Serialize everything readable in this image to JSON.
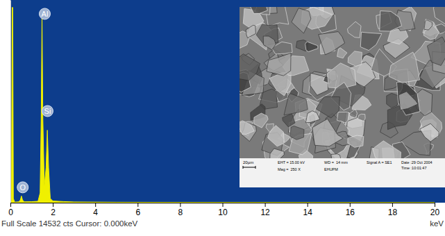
{
  "chart_data": {
    "type": "area",
    "xlabel": "keV",
    "footer": "Full Scale 14532 cts Cursor: 0.000keV",
    "color": "#f0f000",
    "x": [
      0,
      0.05,
      0.08,
      0.11,
      0.14,
      0.2,
      0.4,
      0.47,
      0.52,
      0.57,
      0.65,
      1.0,
      1.3,
      1.4,
      1.45,
      1.49,
      1.53,
      1.6,
      1.68,
      1.74,
      1.8,
      1.88,
      2.0,
      2.5,
      3.0,
      5,
      10,
      20
    ],
    "values": [
      0,
      200,
      14000,
      14000,
      300,
      40,
      60,
      200,
      480,
      200,
      60,
      70,
      100,
      700,
      6000,
      13500,
      6000,
      1200,
      2500,
      5200,
      2500,
      300,
      120,
      80,
      50,
      30,
      15,
      5
    ],
    "xlim": [
      0,
      20
    ],
    "xticks": [
      0,
      2,
      4,
      6,
      8,
      10,
      12,
      14,
      16,
      18,
      20
    ],
    "ylim": [
      0,
      14532
    ],
    "tick_labels": "x",
    "annotations": [
      {
        "text": "Al",
        "x": 1.62,
        "y": 13540
      },
      {
        "text": "Si",
        "x": 1.75,
        "y": 6570
      },
      {
        "text": "O",
        "x": 0.58,
        "y": 1100
      }
    ]
  },
  "inset": {
    "scale_bar": "20µm",
    "info": [
      "EHT = 15.00 kV",
      "Mag =  250 X",
      "WD =  14 mm",
      "EHUPM",
      "Signal A = SE1",
      "Date :29 Oct 2004",
      "Time :10:01:47"
    ]
  }
}
